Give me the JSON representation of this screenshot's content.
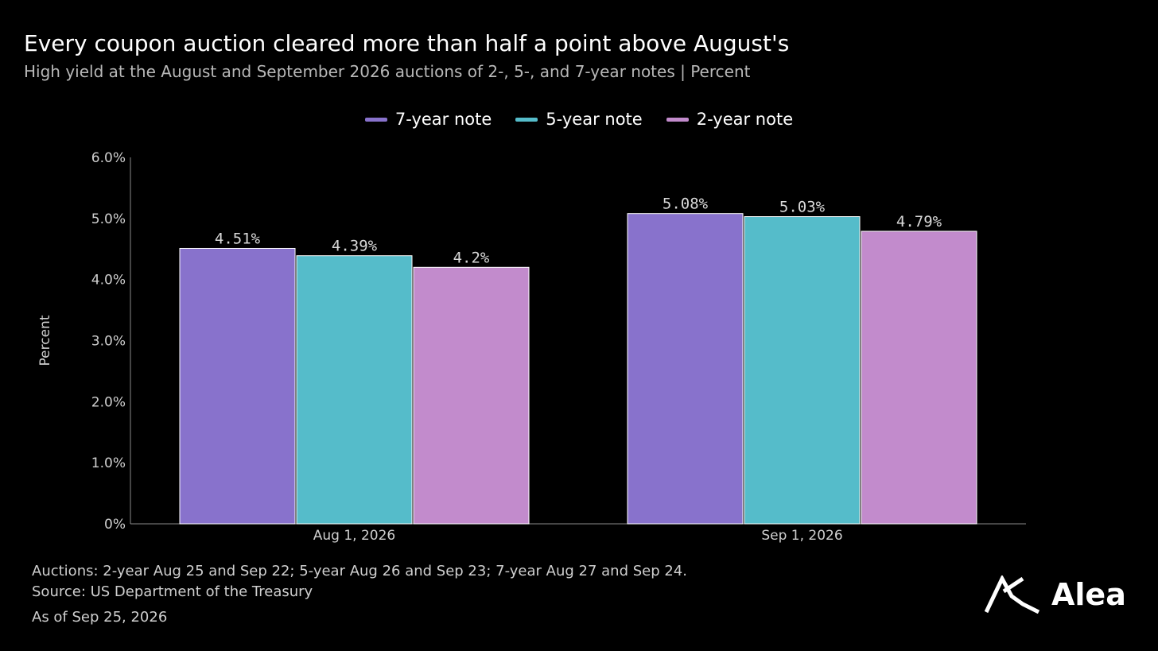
{
  "header": {
    "title": "Every coupon auction cleared more than half a point above August's",
    "subtitle": "High yield at the August and September 2026 auctions of 2-, 5-, and 7-year notes | Percent"
  },
  "chart_data": {
    "type": "bar",
    "categories": [
      "Aug 1, 2026",
      "Sep 1, 2026"
    ],
    "series": [
      {
        "name": "7-year note",
        "color": "#8872cc",
        "values": [
          4.51,
          5.08
        ],
        "labels": [
          "4.51%",
          "5.08%"
        ]
      },
      {
        "name": "5-year note",
        "color": "#55bcca",
        "values": [
          4.39,
          5.03
        ],
        "labels": [
          "4.39%",
          "5.03%"
        ]
      },
      {
        "name": "2-year note",
        "color": "#c28bcc",
        "values": [
          4.2,
          4.79
        ],
        "labels": [
          "4.2%",
          "4.79%"
        ]
      }
    ],
    "ylabel": "Percent",
    "ylim": [
      0,
      6
    ],
    "yticks": [
      0,
      1,
      2,
      3,
      4,
      5,
      6
    ],
    "ytick_labels": [
      "0%",
      "1.0%",
      "2.0%",
      "3.0%",
      "4.0%",
      "5.0%",
      "6.0%"
    ],
    "grid": false,
    "legend_position": "top-center"
  },
  "footer": {
    "note": "Auctions: 2-year Aug 25 and Sep 22; 5-year Aug 26 and Sep 23; 7-year Aug 27 and Sep 24.",
    "source": "Source: US Department of the Treasury",
    "as_of": "As of Sep 25, 2026"
  },
  "brand": {
    "name": "Alea",
    "icon": "alea-logo-icon"
  }
}
